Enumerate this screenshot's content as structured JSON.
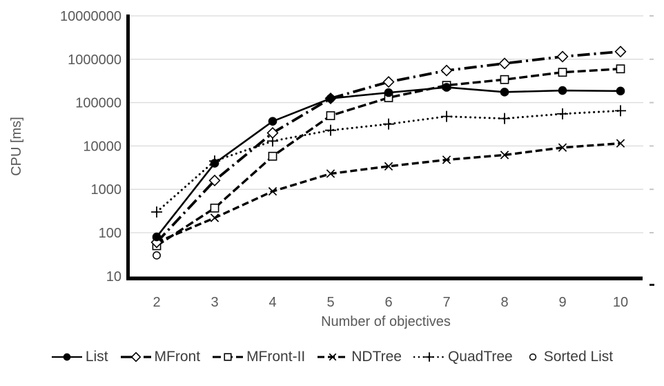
{
  "chart_data": {
    "type": "line",
    "title": "",
    "xlabel": "Number of objectives",
    "ylabel": "CPU [ms]",
    "x": [
      2,
      3,
      4,
      5,
      6,
      7,
      8,
      9,
      10
    ],
    "y_scale": "log",
    "ylim": [
      10,
      10000000
    ],
    "y_ticks": [
      10000000,
      1000000,
      100000,
      10000,
      1000,
      100,
      10
    ],
    "grid": "horizontal",
    "legend_position": "bottom",
    "series": [
      {
        "name": "List",
        "marker": "filled-circle",
        "line": "solid",
        "values": [
          80,
          4000,
          37000,
          125000,
          170000,
          225000,
          175000,
          190000,
          185000
        ]
      },
      {
        "name": "MFront",
        "marker": "open-diamond",
        "line": "long-dash-dot",
        "values": [
          60,
          1600,
          20000,
          125000,
          300000,
          550000,
          800000,
          1150000,
          1500000
        ]
      },
      {
        "name": "MFront-II",
        "marker": "open-square",
        "line": "dash",
        "values": [
          50,
          370,
          5800,
          50000,
          130000,
          250000,
          340000,
          500000,
          600000
        ]
      },
      {
        "name": "NDTree",
        "marker": "x-cross",
        "line": "dash-short",
        "values": [
          60,
          220,
          900,
          2300,
          3400,
          4800,
          6200,
          9200,
          11500
        ]
      },
      {
        "name": "QuadTree",
        "marker": "plus-cross",
        "line": "dot",
        "values": [
          300,
          4500,
          13000,
          23000,
          32000,
          48000,
          43000,
          55000,
          65000
        ]
      },
      {
        "name": "Sorted List",
        "marker": "open-circle",
        "line": "none",
        "values": [
          30,
          null,
          null,
          null,
          null,
          null,
          null,
          null,
          null
        ]
      }
    ],
    "colors": {
      "line": "#000000",
      "grid": "#d9d9d9",
      "axis": "#000000",
      "tick_text": "#595959",
      "legend_text": "#3d3d3d"
    }
  }
}
